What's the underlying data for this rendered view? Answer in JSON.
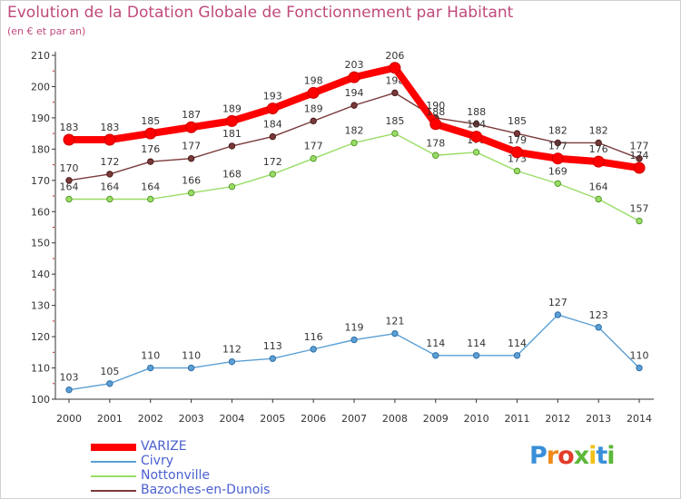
{
  "title": "Evolution de la Dotation Globale de Fonctionnement par Habitant",
  "subtitle": "(en € et par an)",
  "logo_text": "Proxiti",
  "chart_data": {
    "type": "line",
    "x": [
      "2000",
      "2001",
      "2002",
      "2003",
      "2004",
      "2005",
      "2006",
      "2007",
      "2008",
      "2009",
      "2010",
      "2011",
      "2012",
      "2013",
      "2014"
    ],
    "ylim": [
      100,
      210
    ],
    "yticks": [
      100,
      110,
      120,
      130,
      140,
      150,
      160,
      170,
      180,
      190,
      200,
      210
    ],
    "grid": false,
    "legend": "bottom-left",
    "series": [
      {
        "name": "VARIZE",
        "color": "#ff0000",
        "values": [
          183,
          183,
          185,
          187,
          189,
          193,
          198,
          203,
          206,
          188,
          184,
          179,
          177,
          176,
          174
        ]
      },
      {
        "name": "Civry",
        "color": "#5b9fd4",
        "values": [
          103,
          105,
          110,
          110,
          112,
          113,
          116,
          119,
          121,
          114,
          114,
          114,
          127,
          123,
          110
        ]
      },
      {
        "name": "Nottonville",
        "color": "#99dd66",
        "values": [
          164,
          164,
          164,
          166,
          168,
          172,
          177,
          182,
          185,
          178,
          179,
          173,
          169,
          164,
          157
        ]
      },
      {
        "name": "Bazoches-en-Dunois",
        "color": "#7a3a3a",
        "values": [
          170,
          172,
          176,
          177,
          181,
          184,
          189,
          194,
          198,
          190,
          188,
          185,
          182,
          182,
          177
        ]
      }
    ]
  }
}
